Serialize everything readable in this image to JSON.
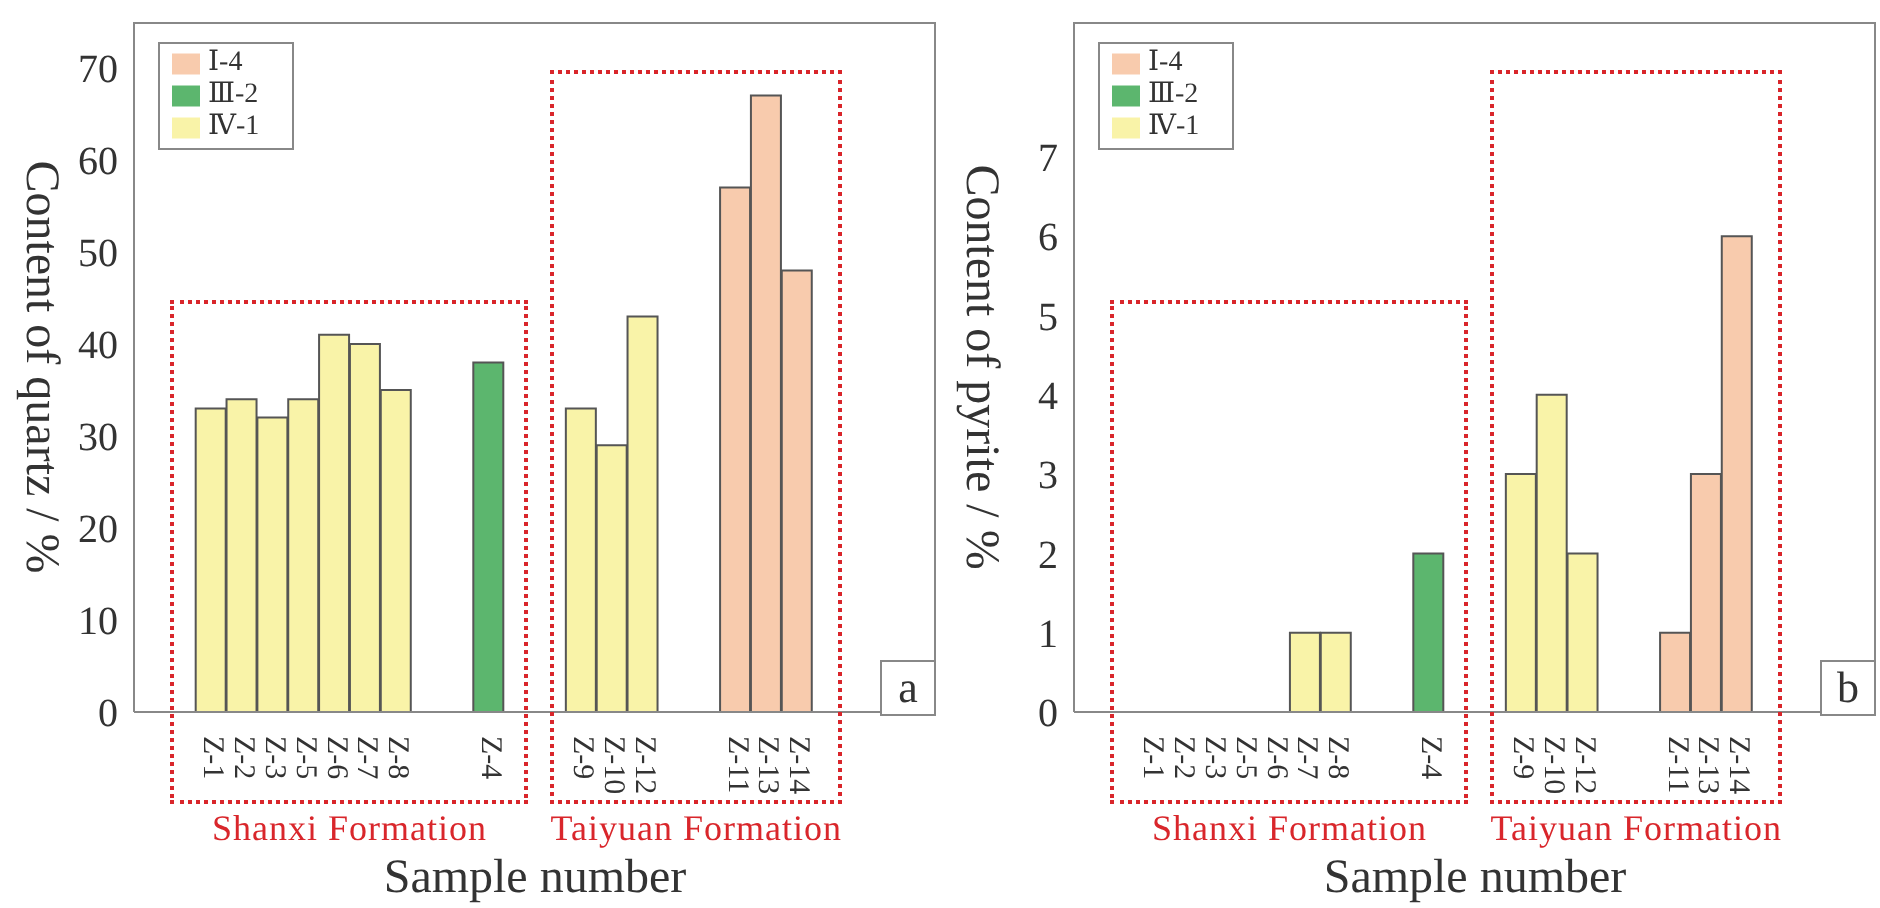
{
  "chart_data": [
    {
      "type": "bar",
      "stacked": true,
      "xlabel": "Sample number",
      "ylabel": "Content of quartz / %",
      "legend": "top left",
      "grid": false,
      "categories": [
        null,
        null,
        "Z-1",
        "Z-2",
        "Z-3",
        "Z-5",
        "Z-6",
        "Z-7",
        "Z-8",
        null,
        null,
        "Z-4",
        null,
        null,
        "Z-9",
        "Z-10",
        "Z-12",
        null,
        null,
        "Z-11",
        "Z-13",
        "Z-14",
        null,
        null,
        null,
        null
      ],
      "series": [
        {
          "name": "Ⅰ-4",
          "color": "#f8cbad",
          "values": [
            null,
            null,
            null,
            null,
            null,
            null,
            null,
            null,
            null,
            null,
            null,
            null,
            null,
            null,
            null,
            null,
            null,
            null,
            null,
            57,
            67,
            48,
            null,
            null,
            null,
            null
          ]
        },
        {
          "name": "Ⅲ-2",
          "color": "#5cb66e",
          "values": [
            null,
            null,
            null,
            null,
            null,
            null,
            null,
            null,
            null,
            null,
            null,
            38,
            null,
            null,
            null,
            null,
            null,
            null,
            null,
            null,
            null,
            null,
            null,
            null,
            null,
            null
          ]
        },
        {
          "name": "Ⅳ-1",
          "color": "#f9f3a8",
          "values": [
            null,
            null,
            33,
            34,
            32,
            34,
            41,
            40,
            35,
            null,
            null,
            null,
            null,
            null,
            33,
            29,
            43,
            null,
            null,
            null,
            null,
            null,
            null,
            null,
            null,
            null
          ]
        }
      ],
      "ylim": [
        0,
        75
      ],
      "yticks": [
        0,
        10,
        20,
        30,
        40,
        50,
        60,
        70
      ],
      "annotations": [
        "Shanxi Formation",
        "Taiyuan Formation",
        "a"
      ]
    },
    {
      "type": "bar",
      "stacked": true,
      "xlabel": "Sample number",
      "ylabel": "Content of pyrite / %",
      "legend": "top left",
      "grid": false,
      "categories": [
        null,
        null,
        "Z-1",
        "Z-2",
        "Z-3",
        "Z-5",
        "Z-6",
        "Z-7",
        "Z-8",
        null,
        null,
        "Z-4",
        null,
        null,
        "Z-9",
        "Z-10",
        "Z-12",
        null,
        null,
        "Z-11",
        "Z-13",
        "Z-14",
        null,
        null,
        null,
        null
      ],
      "series": [
        {
          "name": "Ⅰ-4",
          "color": "#f8cbad",
          "values": [
            null,
            null,
            null,
            null,
            null,
            null,
            null,
            null,
            null,
            null,
            null,
            null,
            null,
            null,
            null,
            null,
            null,
            null,
            null,
            1,
            3,
            6,
            null,
            null,
            null,
            null
          ]
        },
        {
          "name": "Ⅲ-2",
          "color": "#5cb66e",
          "values": [
            null,
            null,
            null,
            null,
            null,
            null,
            null,
            null,
            null,
            null,
            null,
            2,
            null,
            null,
            null,
            null,
            null,
            null,
            null,
            null,
            null,
            null,
            null,
            null,
            null,
            null
          ]
        },
        {
          "name": "Ⅳ-1",
          "color": "#f9f3a8",
          "values": [
            null,
            null,
            0,
            0,
            0,
            0,
            0,
            1,
            1,
            null,
            null,
            null,
            null,
            null,
            3,
            4,
            2,
            null,
            null,
            null,
            null,
            null,
            null,
            null,
            null,
            null
          ]
        }
      ],
      "ylim": [
        0,
        8.7
      ],
      "yticks": [
        0,
        1,
        2,
        3,
        4,
        5,
        6,
        7
      ],
      "annotations": [
        "Shanxi Formation",
        "Taiyuan Formation",
        "b"
      ]
    }
  ]
}
